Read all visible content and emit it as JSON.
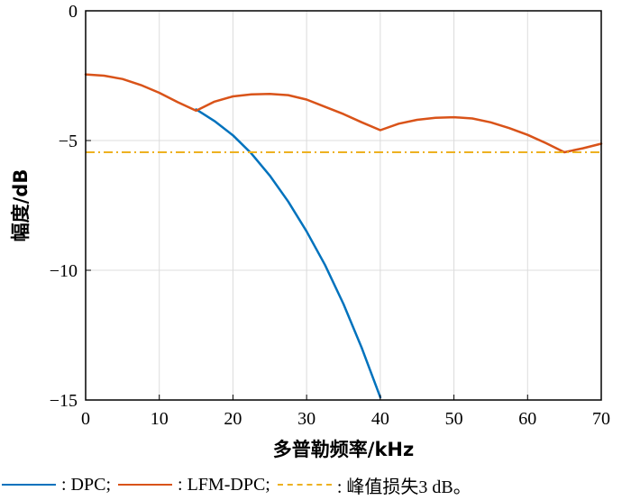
{
  "chart_data": {
    "type": "line",
    "xlabel": "多普勒频率/kHz",
    "ylabel": "幅度/dB",
    "xlim": [
      0,
      70
    ],
    "ylim": [
      -15,
      0
    ],
    "xticks": [
      0,
      10,
      20,
      30,
      40,
      50,
      60,
      70
    ],
    "yticks": [
      0,
      -5,
      -10,
      -15
    ],
    "grid": true,
    "legend_position": "bottom",
    "series": [
      {
        "name": ": DPC;",
        "color": "#0072BD",
        "style": "solid",
        "x": [
          15,
          17.5,
          20,
          22.5,
          25,
          27.5,
          30,
          32.5,
          35,
          37.5,
          40
        ],
        "y": [
          -3.8,
          -4.25,
          -4.8,
          -5.5,
          -6.35,
          -7.35,
          -8.5,
          -9.8,
          -11.3,
          -13.0,
          -14.9
        ]
      },
      {
        "name": ": LFM-DPC;",
        "color": "#D95319",
        "style": "solid",
        "x": [
          0,
          2.5,
          5,
          7.5,
          10,
          12.5,
          15,
          17.5,
          20,
          22.5,
          25,
          27.5,
          30,
          32.5,
          35,
          37.5,
          40,
          42.5,
          45,
          47.5,
          50,
          52.5,
          55,
          57.5,
          60,
          62.5,
          65,
          67.5,
          70
        ],
        "y": [
          -2.45,
          -2.5,
          -2.63,
          -2.86,
          -3.16,
          -3.52,
          -3.85,
          -3.5,
          -3.3,
          -3.22,
          -3.2,
          -3.25,
          -3.42,
          -3.7,
          -3.98,
          -4.3,
          -4.6,
          -4.35,
          -4.2,
          -4.12,
          -4.1,
          -4.15,
          -4.3,
          -4.52,
          -4.78,
          -5.1,
          -5.45,
          -5.3,
          -5.12
        ]
      },
      {
        "name": ": 峰值损失3 dB。",
        "color": "#EDB120",
        "style": "dashdot",
        "x": [
          0,
          70
        ],
        "y": [
          -5.45,
          -5.45
        ]
      }
    ]
  }
}
